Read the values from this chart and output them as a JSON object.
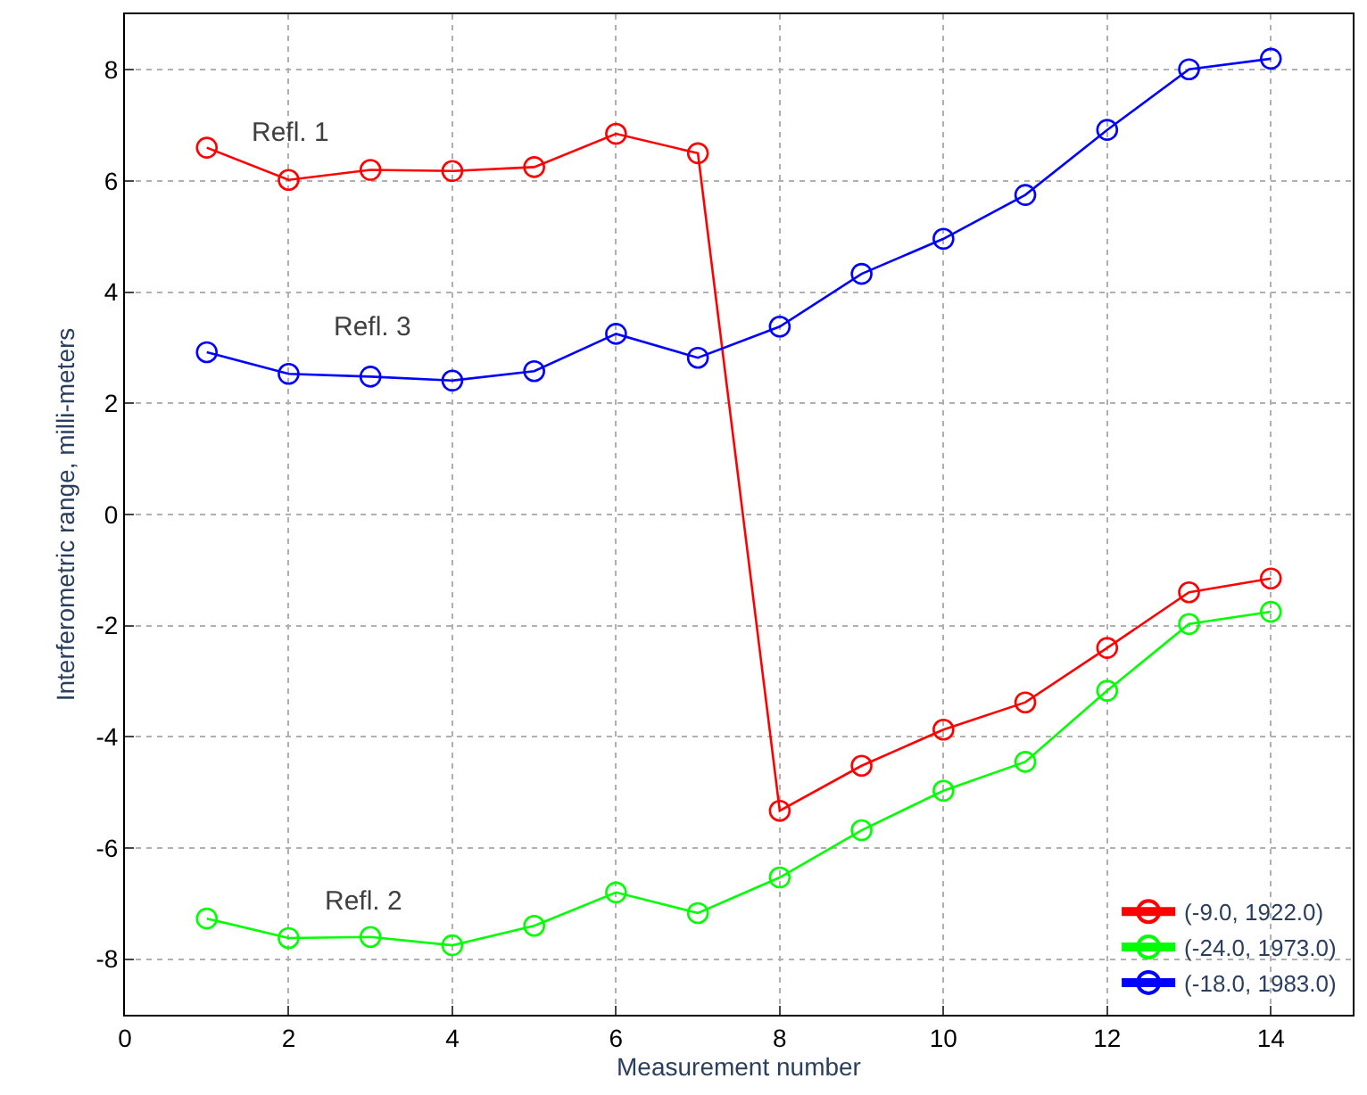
{
  "chart_data": {
    "type": "line",
    "xlabel": "Measurement number",
    "ylabel": "Interferometric range, milli-meters",
    "x": [
      1,
      2,
      3,
      4,
      5,
      6,
      7,
      8,
      9,
      10,
      11,
      12,
      13,
      14
    ],
    "series": [
      {
        "name": "(-9.0, 1922.0)",
        "color": "#ff0000",
        "values": [
          6.6,
          6.02,
          6.2,
          6.18,
          6.25,
          6.85,
          6.5,
          -5.33,
          -4.52,
          -3.87,
          -3.38,
          -2.4,
          -1.4,
          -1.15
        ]
      },
      {
        "name": "(-24.0, 1973.0)",
        "color": "#00ff00",
        "values": [
          -7.27,
          -7.62,
          -7.6,
          -7.75,
          -7.4,
          -6.8,
          -7.17,
          -6.53,
          -5.68,
          -4.97,
          -4.45,
          -3.17,
          -1.97,
          -1.75
        ]
      },
      {
        "name": "(-18.0, 1983.0)",
        "color": "#0000ff",
        "values": [
          2.92,
          2.53,
          2.48,
          2.41,
          2.58,
          3.25,
          2.82,
          3.38,
          4.33,
          4.96,
          5.75,
          6.92,
          8.01,
          8.2
        ]
      }
    ],
    "annotations": [
      "Refl. 1",
      "Refl. 3",
      "Refl. 2"
    ],
    "xlim": [
      0,
      15
    ],
    "xticks": [
      0,
      2,
      4,
      6,
      8,
      10,
      12,
      14
    ],
    "ylim": [
      -9,
      9
    ],
    "yticks": [
      -8,
      -6,
      -4,
      -2,
      0,
      2,
      4,
      6,
      8
    ],
    "grid": true,
    "legend": "bottom right",
    "marker": "circle",
    "line_style": "solid"
  }
}
